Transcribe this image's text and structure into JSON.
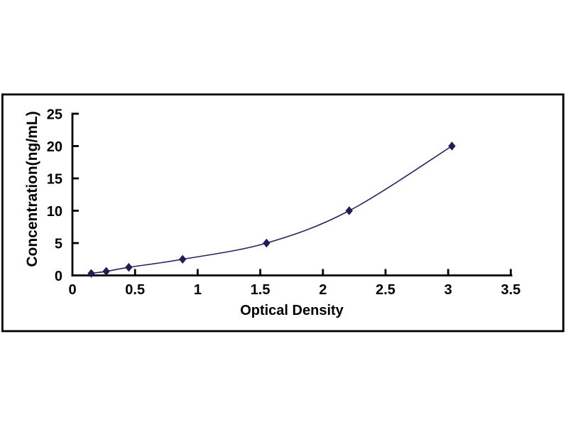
{
  "page": {
    "background": "#ffffff"
  },
  "chart_data": {
    "type": "line",
    "title": "",
    "xlabel": "Optical Density",
    "ylabel": "Concentration(ng/mL)",
    "x": [
      0.15,
      0.27,
      0.45,
      0.88,
      1.55,
      2.21,
      3.03
    ],
    "y": [
      0.312,
      0.625,
      1.25,
      2.5,
      5,
      10,
      20
    ],
    "xlim": [
      0,
      3.5
    ],
    "ylim": [
      0,
      25
    ],
    "xtick_values": [
      0,
      0.5,
      1,
      1.5,
      2,
      2.5,
      3,
      3.5
    ],
    "xtick_labels": [
      "0",
      "0.5",
      "1",
      "1.5",
      "2",
      "2.5",
      "3",
      "3.5"
    ],
    "ytick_values": [
      0,
      5,
      10,
      15,
      20,
      25
    ],
    "ytick_labels": [
      "0",
      "5",
      "10",
      "15",
      "20",
      "25"
    ],
    "grid": false,
    "legend": false,
    "marker": "diamond",
    "line_smooth": true,
    "colors": {
      "line": "#26265c",
      "marker": "#1e1e52",
      "axis": "#000000",
      "text": "#000000",
      "frame_border": "#000000",
      "plot_background": "#ffffff"
    }
  }
}
